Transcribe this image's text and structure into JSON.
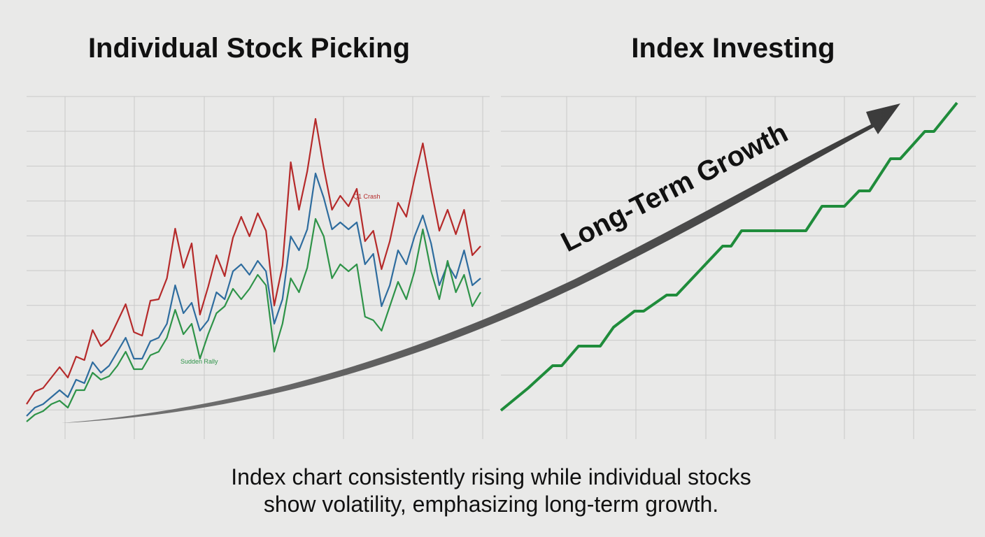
{
  "chart_data": [
    {
      "type": "line",
      "title": "Individual Stock Picking",
      "grid": true,
      "ylim": [
        0,
        490
      ],
      "series": [
        {
          "color": "#b52a2a",
          "values": [
            50,
            68,
            73,
            88,
            103,
            88,
            118,
            113,
            156,
            133,
            143,
            168,
            193,
            153,
            148,
            198,
            200,
            230,
            301,
            245,
            280,
            178,
            218,
            263,
            233,
            288,
            318,
            290,
            323,
            298,
            191,
            248,
            396,
            328,
            383,
            458,
            388,
            328,
            348,
            333,
            358,
            283,
            298,
            243,
            283,
            338,
            318,
            373,
            423,
            358,
            298,
            328,
            293,
            328,
            263,
            276
          ]
        },
        {
          "color": "#2e6c9e",
          "values": [
            33,
            45,
            50,
            60,
            70,
            60,
            85,
            80,
            110,
            95,
            105,
            125,
            145,
            115,
            115,
            140,
            145,
            165,
            220,
            180,
            195,
            155,
            170,
            210,
            200,
            240,
            250,
            235,
            255,
            240,
            165,
            200,
            290,
            270,
            300,
            380,
            345,
            300,
            310,
            300,
            310,
            250,
            265,
            190,
            220,
            270,
            250,
            290,
            320,
            280,
            220,
            250,
            230,
            270,
            220,
            230
          ]
        },
        {
          "color": "#2e9348",
          "values": [
            25,
            35,
            40,
            50,
            55,
            45,
            70,
            70,
            95,
            85,
            90,
            105,
            125,
            100,
            100,
            120,
            125,
            145,
            185,
            150,
            165,
            115,
            150,
            180,
            190,
            215,
            200,
            215,
            235,
            220,
            125,
            165,
            230,
            210,
            245,
            315,
            290,
            230,
            250,
            240,
            250,
            175,
            170,
            155,
            190,
            225,
            200,
            240,
            300,
            240,
            200,
            255,
            210,
            235,
            190,
            210
          ]
        }
      ],
      "annotations": [
        {
          "text": "Q1 Crash",
          "color": "#b52a2a"
        },
        {
          "text": "Sudden Rally",
          "color": "#2e9348"
        }
      ]
    },
    {
      "type": "line",
      "title": "Index Investing",
      "grid": true,
      "xlim": [
        0,
        679
      ],
      "ylim": [
        0,
        490
      ],
      "series": [
        {
          "color": "#1f8c3b",
          "x": [
            0,
            39,
            74,
            87,
            111,
            142,
            161,
            191,
            204,
            237,
            251,
            317,
            329,
            344,
            436,
            459,
            491,
            512,
            527,
            557,
            571,
            606,
            619,
            652
          ],
          "values": [
            41,
            73,
            105,
            105,
            133,
            133,
            160,
            183,
            183,
            206,
            206,
            276,
            276,
            298,
            298,
            333,
            333,
            355,
            355,
            401,
            401,
            440,
            440,
            481
          ]
        }
      ]
    }
  ],
  "arrow_label": "Long-Term Growth",
  "caption": [
    "Index chart consistently rising while individual stocks",
    "show volatility, emphasizing long-term growth."
  ]
}
